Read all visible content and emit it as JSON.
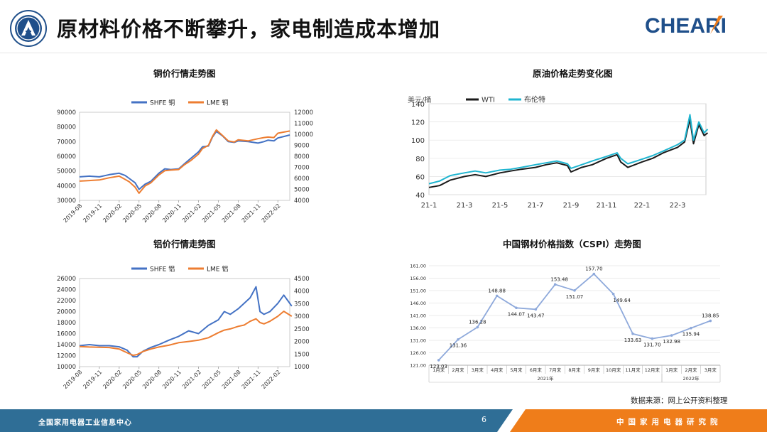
{
  "header": {
    "title": "原材料价格不断攀升，家电制造成本增加",
    "brand": "CHEARI"
  },
  "source_note": "数据来源：网上公开资料整理",
  "footer": {
    "left_text": "全国家用电器工业信息中心",
    "page": "6",
    "right_text": "中国家用电器研究院"
  },
  "colors": {
    "shfe_blue": "#4472C4",
    "lme_orange": "#ED7D31",
    "wti": "#1a1a1a",
    "brent": "#1fb5d0",
    "cspi": "#8ea9db",
    "footer_blue": "#2f6e96",
    "footer_orange": "#ef7d1a"
  },
  "chart_data": [
    {
      "id": "copper",
      "type": "line",
      "title": "铜价行情走势图",
      "x_ticks": [
        "2019-08",
        "2019-11",
        "2020-02",
        "2020-05",
        "2020-08",
        "2020-11",
        "2021-02",
        "2021-05",
        "2021-08",
        "2021-11",
        "2022-02"
      ],
      "y_left": {
        "min": 30000,
        "max": 90000,
        "ticks": [
          "30000",
          "40000",
          "50000",
          "60000",
          "70000",
          "80000",
          "90000"
        ]
      },
      "y_right": {
        "min": 4000,
        "max": 12000,
        "ticks": [
          "4000",
          "5000",
          "6000",
          "7000",
          "8000",
          "9000",
          "10000",
          "11000",
          "12000"
        ]
      },
      "series": [
        {
          "name": "SHFE 铜",
          "axis": "left",
          "color": "#4472C4",
          "x": [
            0,
            0.5,
            1,
            1.5,
            2,
            2.3,
            2.5,
            2.8,
            3,
            3.3,
            3.6,
            4,
            4.3,
            4.6,
            5,
            5.3,
            5.6,
            6,
            6.2,
            6.5,
            6.7,
            6.9,
            7.2,
            7.5,
            7.8,
            8,
            8.5,
            9,
            9.3,
            9.5,
            9.8,
            10,
            10.3,
            10.6
          ],
          "values": [
            46000,
            46500,
            46000,
            47500,
            48500,
            47000,
            45000,
            42000,
            37500,
            41000,
            43000,
            48500,
            51500,
            51000,
            51500,
            55000,
            58500,
            63000,
            66500,
            67000,
            73000,
            77000,
            74000,
            70000,
            69500,
            70500,
            70000,
            69000,
            70000,
            71000,
            70500,
            72500,
            73500,
            74500
          ]
        },
        {
          "name": "LME 铜",
          "axis": "right",
          "color": "#ED7D31",
          "x": [
            0,
            0.5,
            1,
            1.5,
            2,
            2.3,
            2.5,
            2.8,
            3,
            3.3,
            3.6,
            4,
            4.3,
            4.6,
            5,
            5.3,
            5.6,
            6,
            6.2,
            6.5,
            6.7,
            6.9,
            7.2,
            7.5,
            7.8,
            8,
            8.5,
            9,
            9.3,
            9.5,
            9.8,
            10,
            10.3,
            10.6
          ],
          "values": [
            5750,
            5800,
            5850,
            6050,
            6200,
            5900,
            5700,
            5200,
            4650,
            5300,
            5600,
            6300,
            6700,
            6750,
            6800,
            7250,
            7600,
            8200,
            8700,
            9000,
            9800,
            10400,
            9900,
            9400,
            9300,
            9500,
            9400,
            9600,
            9700,
            9750,
            9700,
            10100,
            10200,
            10300
          ]
        }
      ]
    },
    {
      "id": "crude",
      "type": "line",
      "title": "原油价格走势变化图",
      "ylabel": "美元/桶",
      "x_ticks": [
        "21-1",
        "21-3",
        "21-5",
        "21-7",
        "21-9",
        "21-11",
        "22-1",
        "22-3"
      ],
      "ylim": [
        40,
        140
      ],
      "y_ticks": [
        "40",
        "60",
        "80",
        "100",
        "120",
        "140"
      ],
      "series": [
        {
          "name": "WTI",
          "color": "#1a1a1a",
          "x": [
            0,
            0.3,
            0.6,
            1,
            1.3,
            1.6,
            2,
            2.3,
            2.6,
            3,
            3.3,
            3.6,
            3.9,
            4,
            4.3,
            4.6,
            5,
            5.3,
            5.4,
            5.6,
            6,
            6.3,
            6.6,
            7,
            7.2,
            7.35,
            7.45,
            7.6,
            7.75,
            7.85
          ],
          "values": [
            48,
            50,
            56,
            60,
            62,
            60,
            64,
            66,
            68,
            70,
            73,
            75,
            72,
            65,
            70,
            73,
            80,
            84,
            76,
            70,
            76,
            80,
            86,
            92,
            98,
            123,
            96,
            117,
            105,
            108
          ]
        },
        {
          "name": "布伦特",
          "color": "#1fb5d0",
          "x": [
            0,
            0.3,
            0.6,
            1,
            1.3,
            1.6,
            2,
            2.3,
            2.6,
            3,
            3.3,
            3.6,
            3.9,
            4,
            4.3,
            4.6,
            5,
            5.3,
            5.4,
            5.6,
            6,
            6.3,
            6.6,
            7,
            7.2,
            7.35,
            7.45,
            7.6,
            7.75,
            7.85
          ],
          "values": [
            52,
            55,
            61,
            64,
            66,
            64,
            67,
            68,
            70,
            73,
            75,
            77,
            74,
            69,
            73,
            77,
            82,
            86,
            80,
            74,
            79,
            83,
            88,
            95,
            100,
            128,
            100,
            120,
            108,
            112
          ]
        }
      ]
    },
    {
      "id": "aluminum",
      "type": "line",
      "title": "铝价行情走势图",
      "x_ticks": [
        "2019-08",
        "2019-11",
        "2020-02",
        "2020-05",
        "2020-08",
        "2020-11",
        "2021-02",
        "2021-05",
        "2021-08",
        "2021-11",
        "2022-02"
      ],
      "y_left": {
        "min": 10000,
        "max": 26000,
        "ticks": [
          "10000",
          "12000",
          "14000",
          "16000",
          "18000",
          "20000",
          "22000",
          "24000",
          "26000"
        ]
      },
      "y_right": {
        "min": 1000,
        "max": 4500,
        "ticks": [
          "1000",
          "1500",
          "2000",
          "2500",
          "3000",
          "3500",
          "4000",
          "4500"
        ]
      },
      "series": [
        {
          "name": "SHFE 铝",
          "axis": "left",
          "color": "#4472C4",
          "x": [
            0,
            0.5,
            1,
            1.5,
            2,
            2.4,
            2.7,
            2.9,
            3.2,
            3.6,
            4,
            4.5,
            5,
            5.5,
            6,
            6.5,
            7,
            7.3,
            7.6,
            8,
            8.3,
            8.6,
            8.9,
            9.1,
            9.3,
            9.6,
            10,
            10.3,
            10.5,
            10.7
          ],
          "values": [
            13800,
            14000,
            13800,
            13800,
            13600,
            13000,
            11800,
            11800,
            12800,
            13500,
            14000,
            14800,
            15500,
            16500,
            16000,
            17500,
            18500,
            20000,
            19500,
            20500,
            21500,
            22500,
            24500,
            20000,
            19500,
            20000,
            21500,
            23000,
            22000,
            21000
          ]
        },
        {
          "name": "LME 铝",
          "axis": "right",
          "color": "#ED7D31",
          "x": [
            0,
            0.5,
            1,
            1.5,
            2,
            2.4,
            2.7,
            2.9,
            3.2,
            3.6,
            4,
            4.5,
            5,
            5.5,
            6,
            6.5,
            7,
            7.3,
            7.6,
            8,
            8.3,
            8.6,
            8.9,
            9.1,
            9.3,
            9.6,
            10,
            10.3,
            10.5,
            10.7
          ],
          "values": [
            1800,
            1780,
            1770,
            1760,
            1700,
            1550,
            1450,
            1480,
            1600,
            1700,
            1780,
            1850,
            1950,
            2000,
            2050,
            2150,
            2350,
            2450,
            2500,
            2600,
            2650,
            2800,
            2900,
            2750,
            2700,
            2800,
            3000,
            3200,
            3100,
            3000
          ]
        }
      ]
    },
    {
      "id": "cspi",
      "type": "line",
      "title": "中国钢材价格指数（CSPI）走势图",
      "categories": [
        "1月末",
        "2月末",
        "3月末",
        "4月末",
        "5月末",
        "6月末",
        "7月末",
        "8月末",
        "9月末",
        "10月末",
        "11月末",
        "12月末",
        "1月末",
        "2月末",
        "3月末"
      ],
      "year_groups": [
        {
          "label": "2021年",
          "span": 12
        },
        {
          "label": "2022年",
          "span": 3
        }
      ],
      "values": [
        123.03,
        131.36,
        136.28,
        148.88,
        144.07,
        143.47,
        153.48,
        151.07,
        157.7,
        149.64,
        133.63,
        131.7,
        132.98,
        135.94,
        138.85
      ],
      "labels": [
        "123.03",
        "131.36",
        "136.28",
        "148.88",
        "144.07",
        "143.47",
        "153.48",
        "151.07",
        "157.70",
        "149.64",
        "133.63",
        "131.70",
        "132.98",
        "135.94",
        "138.85"
      ],
      "ylim": [
        121,
        161
      ],
      "y_ticks": [
        "121.00",
        "126.00",
        "131.00",
        "136.00",
        "141.00",
        "146.00",
        "151.00",
        "156.00",
        "161.00"
      ]
    }
  ]
}
